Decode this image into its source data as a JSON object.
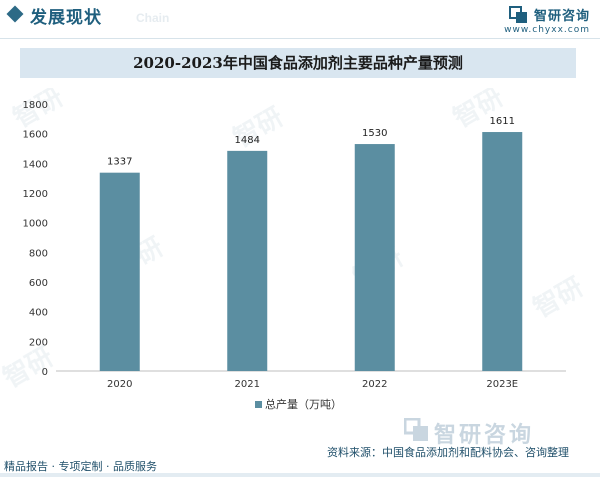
{
  "header": {
    "section_title": "发展现状",
    "ghost_word": "Chain",
    "brand_name": "智研咨询",
    "brand_url": "www.chyxx.com"
  },
  "chart_title": "2020-2023年中国食品添加剂主要品种产量预测",
  "chart_data": {
    "type": "bar",
    "title": "2020-2023年中国食品添加剂主要品种产量预测",
    "categories": [
      "2020",
      "2021",
      "2022",
      "2023E"
    ],
    "series": [
      {
        "name": "总产量（万吨）",
        "values": [
          1337,
          1484,
          1530,
          1611
        ],
        "color": "#5b8ea1"
      }
    ],
    "y_ticks": [
      0,
      200,
      400,
      600,
      800,
      1000,
      1200,
      1400,
      1600,
      1800
    ],
    "ylim": [
      0,
      1800
    ],
    "data_labels": [
      "1337",
      "1484",
      "1530",
      "1611"
    ],
    "grid": false,
    "legend_position": "bottom-center"
  },
  "footer": {
    "left_text": "精品报告 · 专项定制 · 品质服务",
    "source_text": "资料来源：中国食品添加剂和配料协会、咨询整理",
    "brand_name": "智研咨询"
  }
}
